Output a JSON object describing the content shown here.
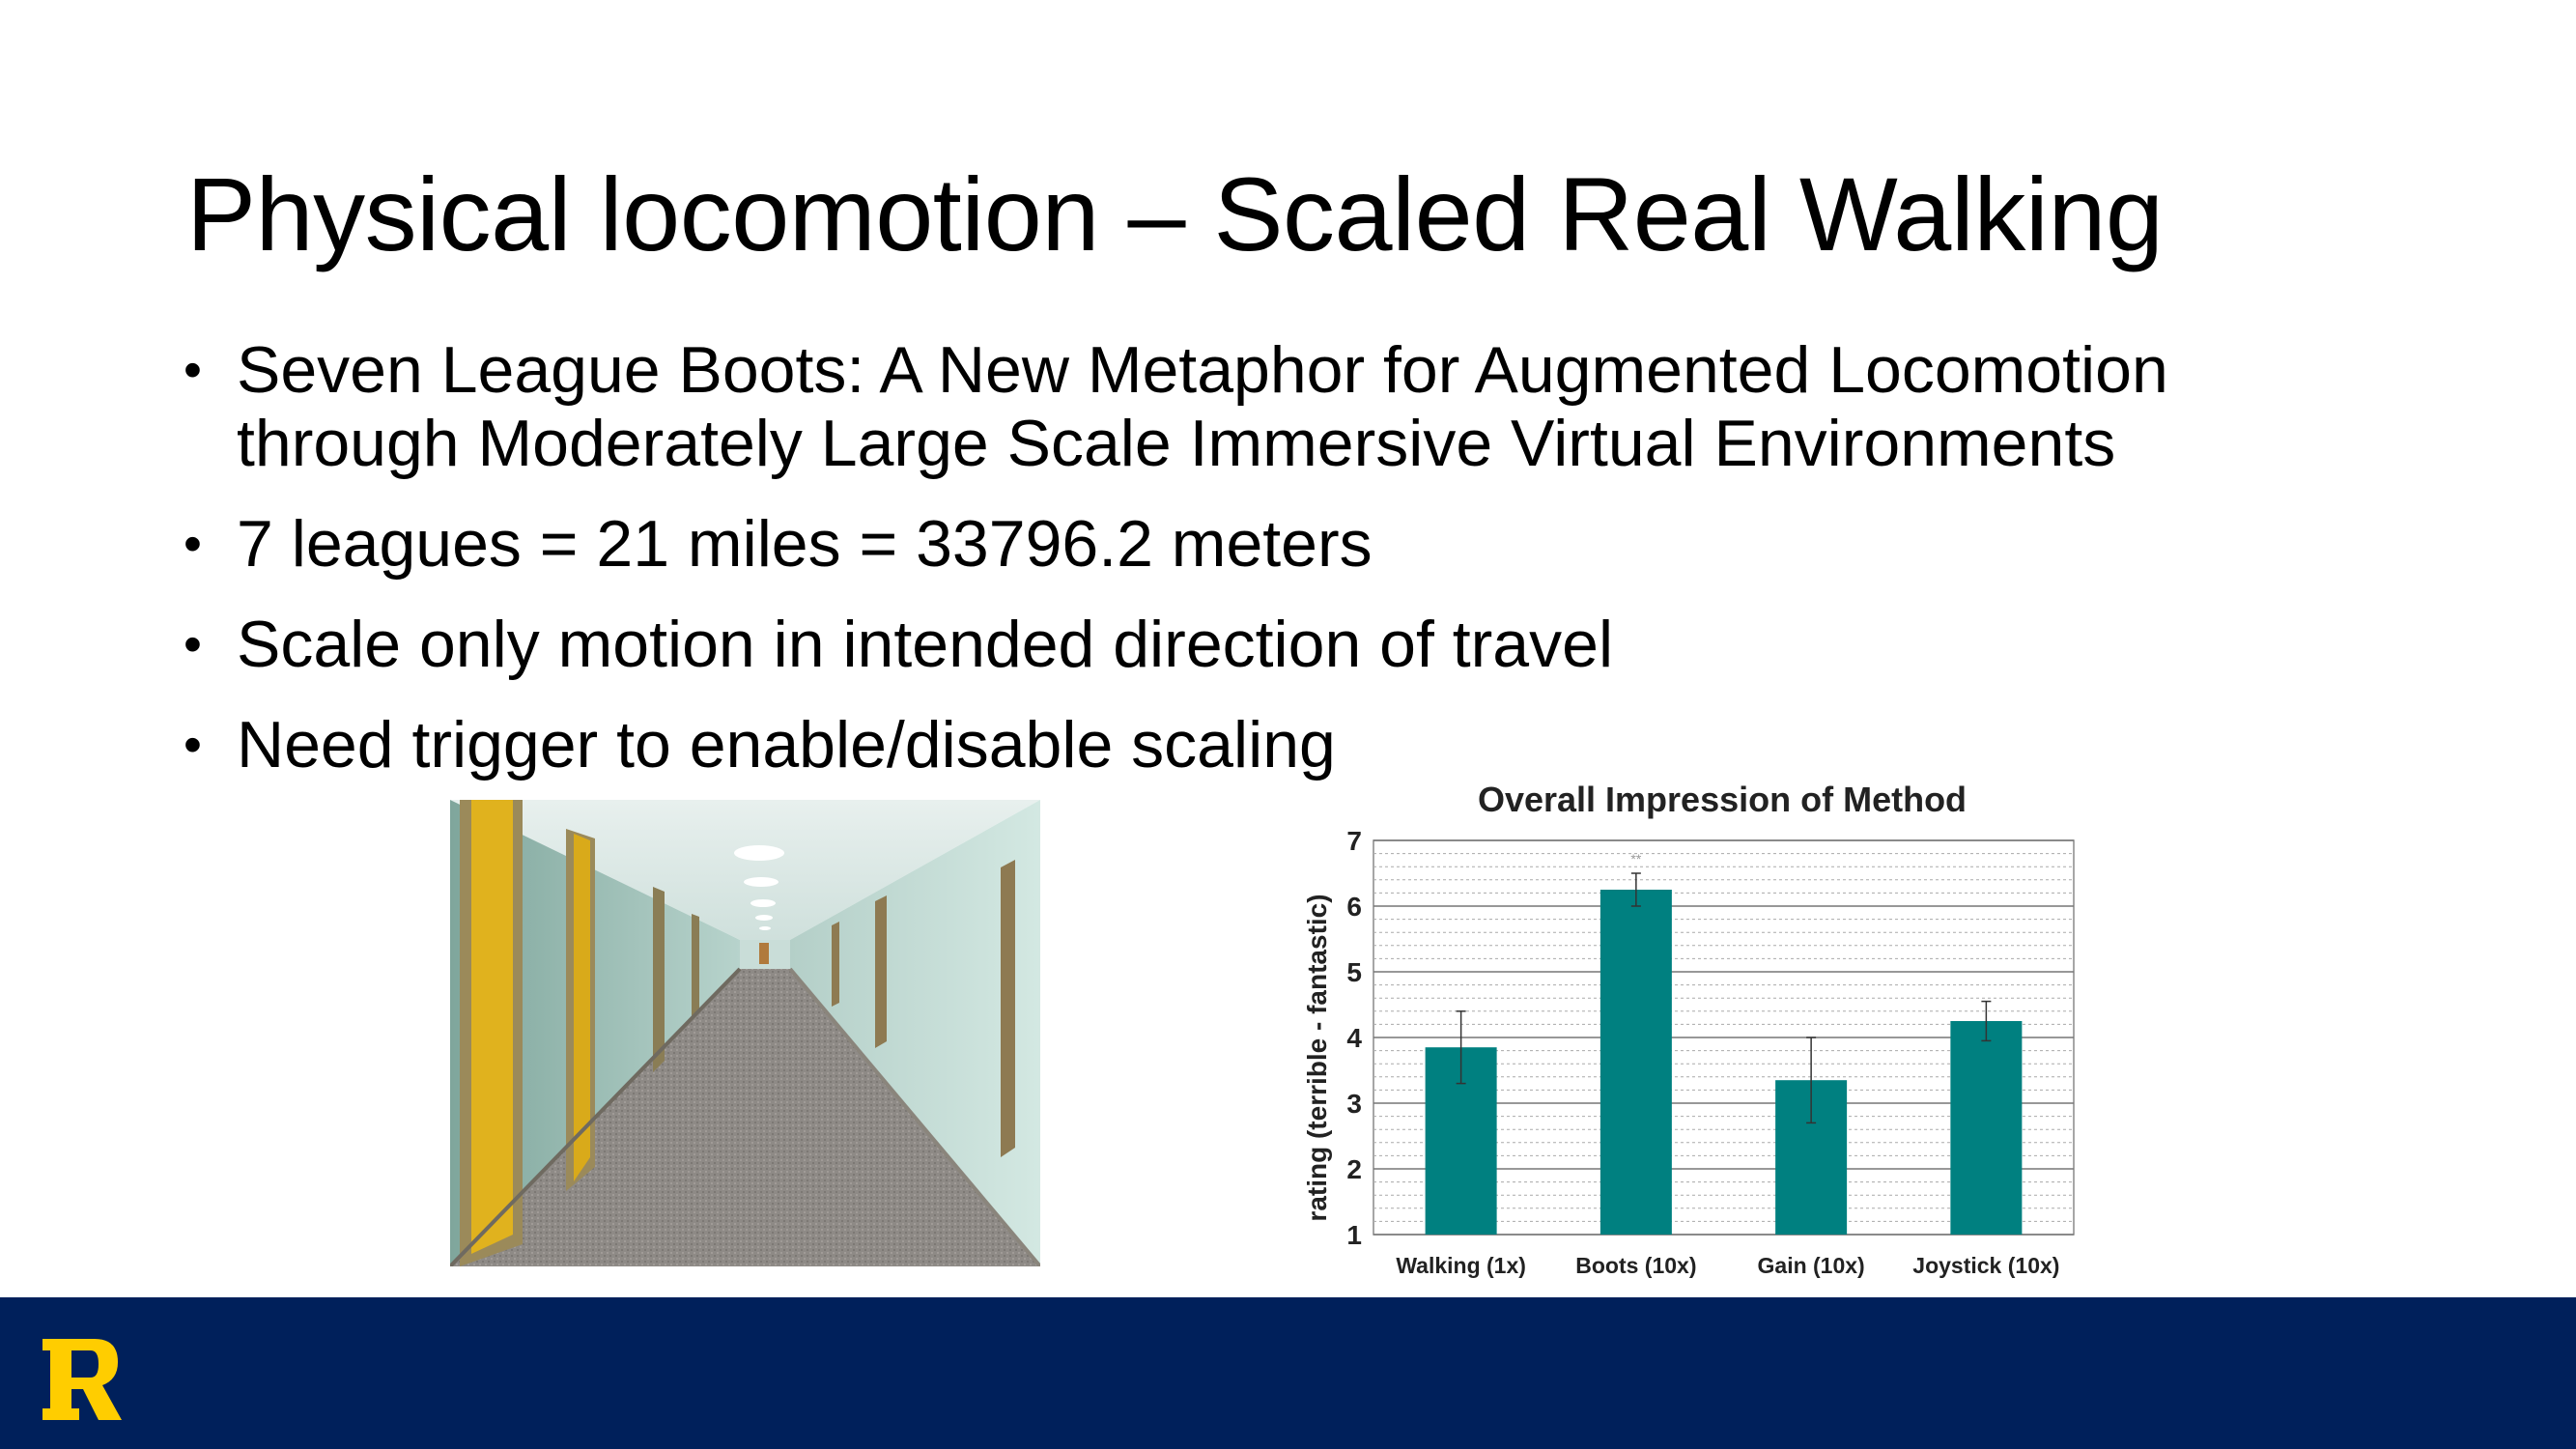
{
  "slide": {
    "title": "Physical locomotion – Scaled Real Walking",
    "bullets": [
      "Seven League Boots: A New Metaphor for Augmented Locomotion through Moderately Large Scale Immersive Virtual Environments",
      "7 leagues = 21 miles = 33796.2 meters",
      "Scale only motion in intended direction of travel",
      "Need trigger to enable/disable scaling"
    ],
    "bullet_marker": "•"
  },
  "footer": {
    "logo_letter": "R",
    "background_color": "#00205B",
    "logo_color": "#FFCD00"
  },
  "chart_data": {
    "type": "bar",
    "title": "Overall Impression of Method",
    "ylabel": "rating (terrible - fantastic)",
    "xlabel": "",
    "categories": [
      "Walking (1x)",
      "Boots (10x)",
      "Gain (10x)",
      "Joystick (10x)"
    ],
    "values": [
      3.85,
      6.25,
      3.35,
      4.25
    ],
    "errors": [
      0.55,
      0.25,
      0.65,
      0.3
    ],
    "ylim": [
      1,
      7
    ],
    "yticks": [
      1,
      2,
      3,
      4,
      5,
      6,
      7
    ],
    "annotation": "**",
    "bar_color": "#008080",
    "grid": true
  }
}
